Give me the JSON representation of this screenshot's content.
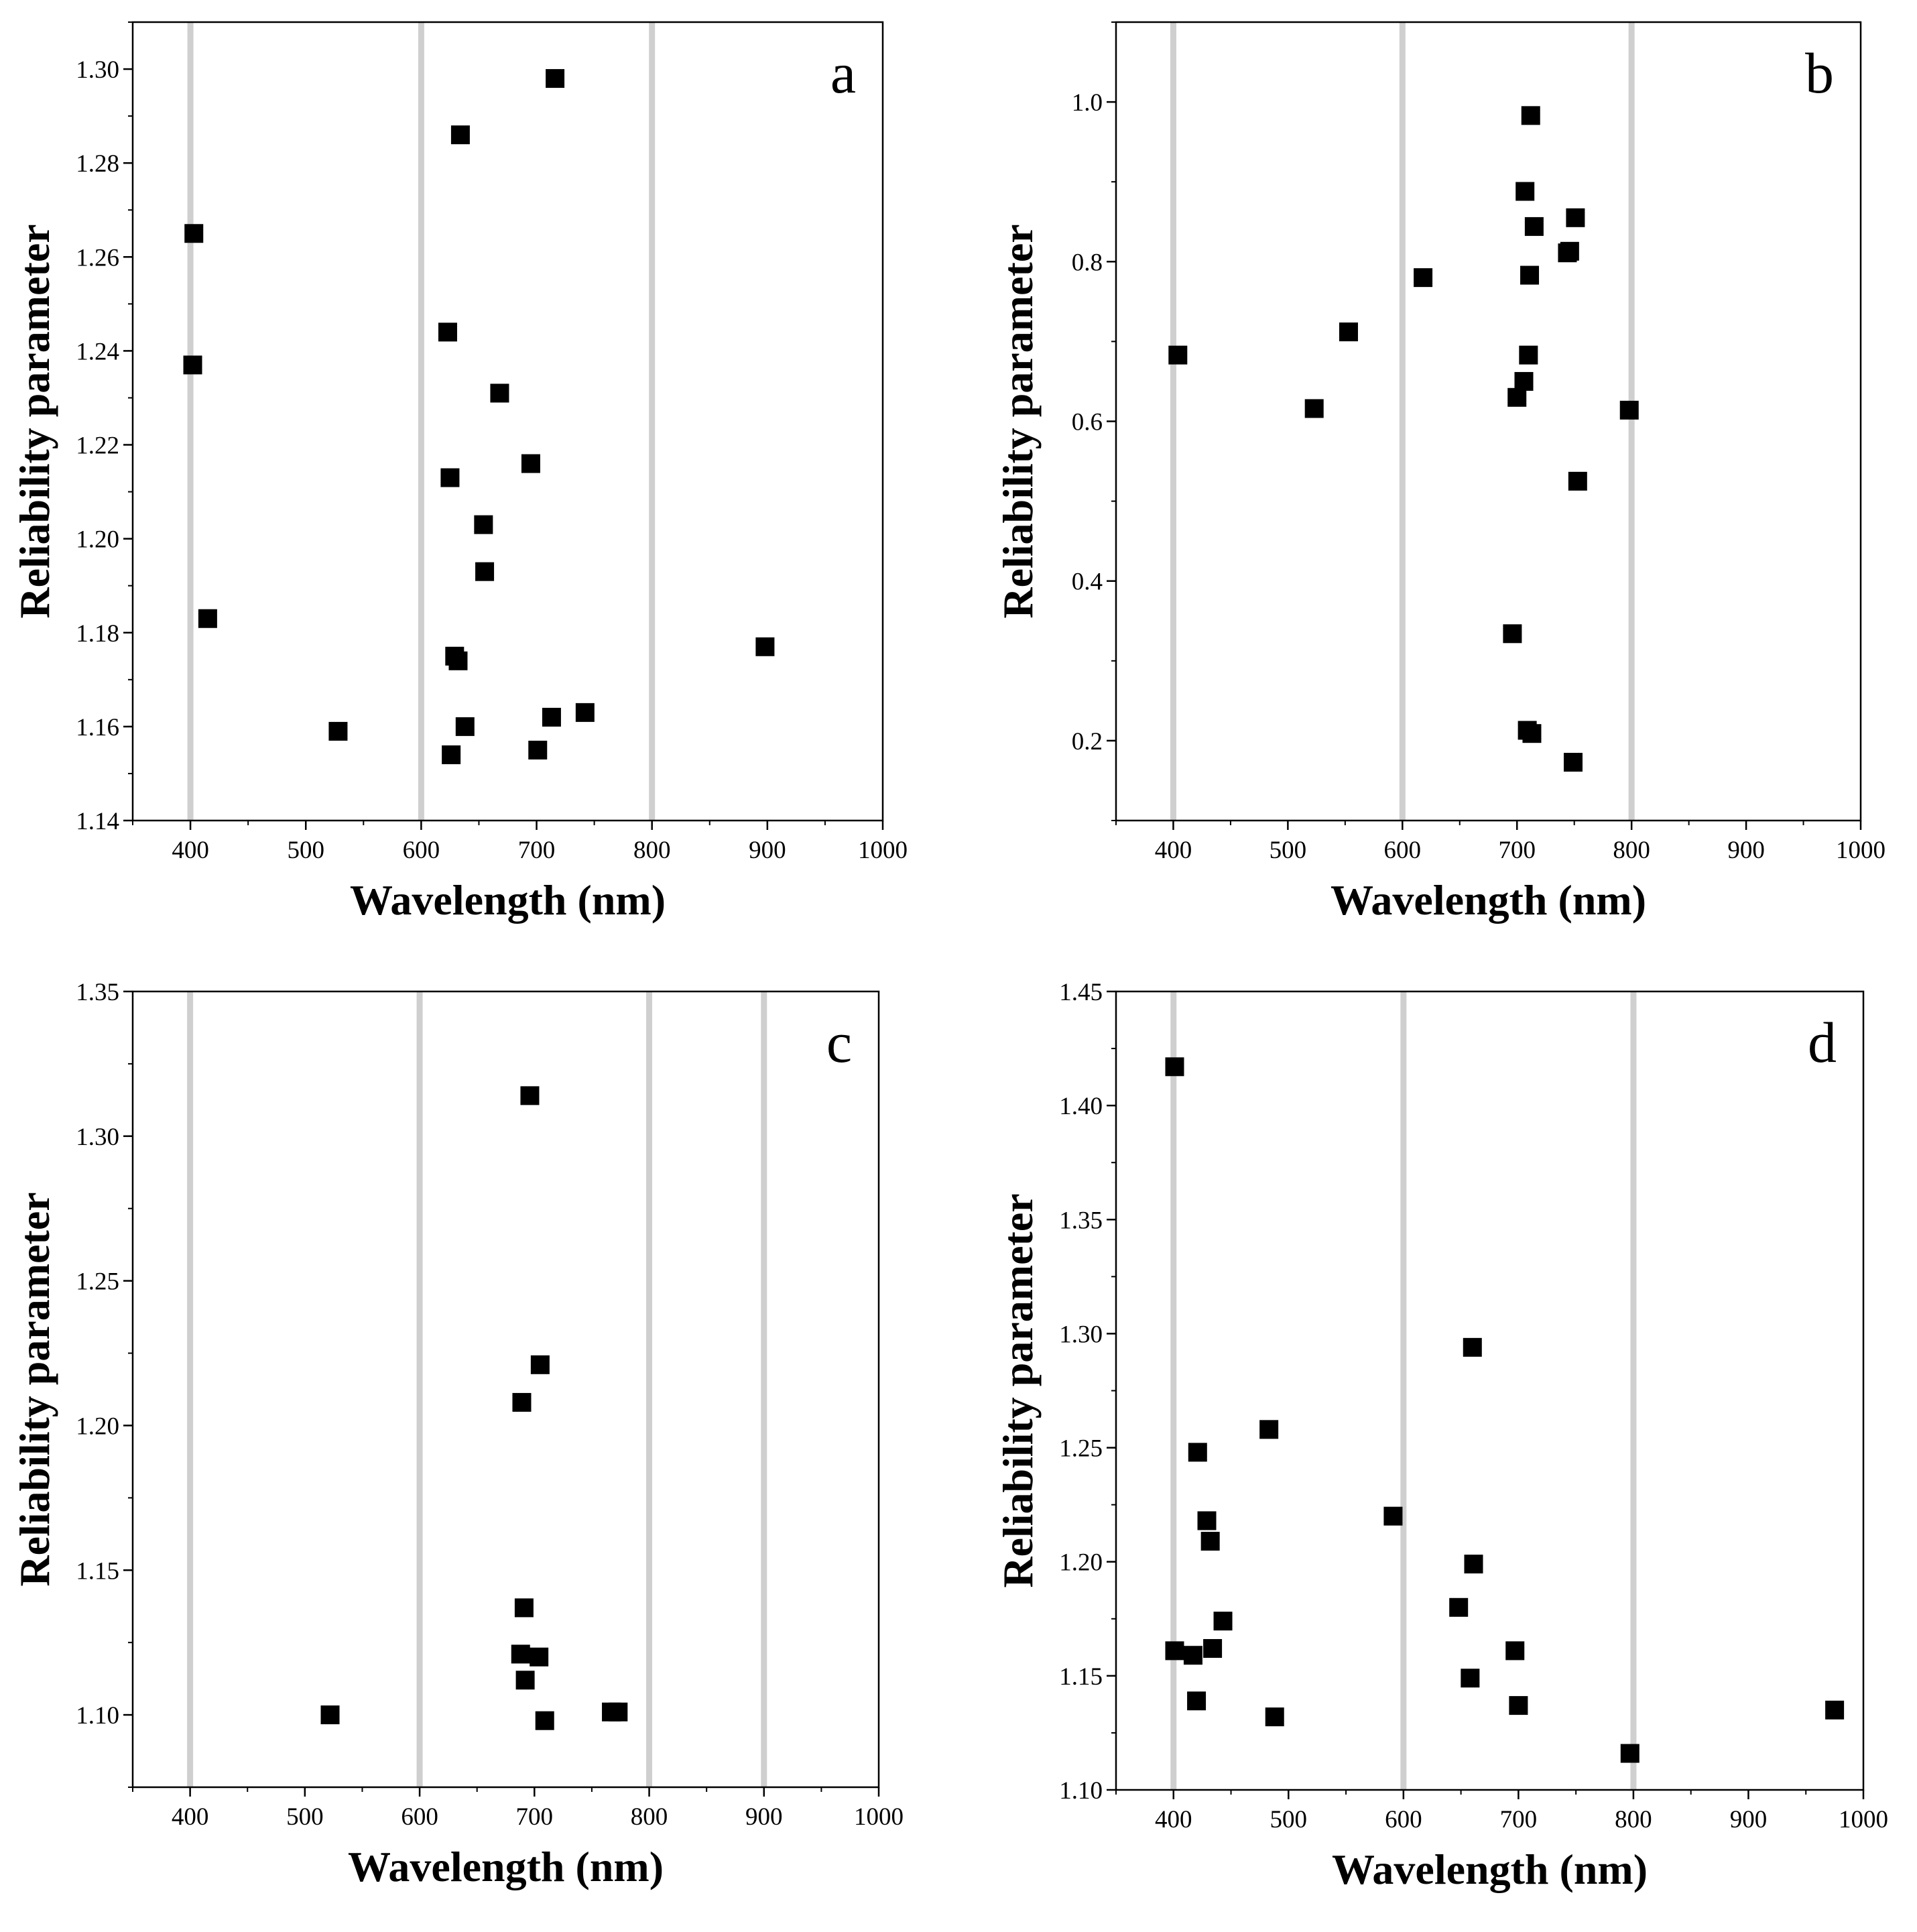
{
  "chart_data": [
    {
      "type": "scatter",
      "panel_label": "a",
      "xlabel": "Wavelength (nm)",
      "ylabel": "Reliability parameter",
      "xlim": [
        350,
        1000
      ],
      "ylim": [
        1.14,
        1.31
      ],
      "xticks": [
        400,
        500,
        600,
        700,
        800,
        900,
        1000
      ],
      "yticks": [
        1.14,
        1.16,
        1.18,
        1.2,
        1.22,
        1.24,
        1.26,
        1.28,
        1.3
      ],
      "ytick_labels": [
        "1.14",
        "1.16",
        "1.18",
        "1.20",
        "1.22",
        "1.24",
        "1.26",
        "1.28",
        "1.30"
      ],
      "xminor_step": 50,
      "yminor_step": 0.01,
      "vlines": [
        400,
        600,
        800
      ],
      "grid": false,
      "points": [
        {
          "x": 403,
          "y": 1.265
        },
        {
          "x": 402,
          "y": 1.237
        },
        {
          "x": 415,
          "y": 1.183
        },
        {
          "x": 528,
          "y": 1.159
        },
        {
          "x": 623,
          "y": 1.244
        },
        {
          "x": 625,
          "y": 1.213
        },
        {
          "x": 626,
          "y": 1.154
        },
        {
          "x": 629,
          "y": 1.175
        },
        {
          "x": 632,
          "y": 1.174
        },
        {
          "x": 634,
          "y": 1.286
        },
        {
          "x": 638,
          "y": 1.16
        },
        {
          "x": 654,
          "y": 1.203
        },
        {
          "x": 655,
          "y": 1.193
        },
        {
          "x": 668,
          "y": 1.231
        },
        {
          "x": 695,
          "y": 1.216
        },
        {
          "x": 701,
          "y": 1.155
        },
        {
          "x": 713,
          "y": 1.162
        },
        {
          "x": 716,
          "y": 1.298
        },
        {
          "x": 742,
          "y": 1.163
        },
        {
          "x": 898,
          "y": 1.177
        }
      ]
    },
    {
      "type": "scatter",
      "panel_label": "b",
      "xlabel": "Wavelength (nm)",
      "ylabel": "Reliability parameter",
      "xlim": [
        350,
        1000
      ],
      "ylim": [
        0.1,
        1.1
      ],
      "xticks": [
        400,
        500,
        600,
        700,
        800,
        900,
        1000
      ],
      "yticks": [
        0.2,
        0.4,
        0.6,
        0.8,
        1.0
      ],
      "ytick_labels": [
        "0.2",
        "0.4",
        "0.6",
        "0.8",
        "1.0"
      ],
      "xminor_step": 50,
      "yminor_step": 0.1,
      "vlines": [
        400,
        600,
        800
      ],
      "grid": false,
      "points": [
        {
          "x": 404,
          "y": 0.683
        },
        {
          "x": 523,
          "y": 0.616
        },
        {
          "x": 553,
          "y": 0.712
        },
        {
          "x": 618,
          "y": 0.78
        },
        {
          "x": 696,
          "y": 0.334
        },
        {
          "x": 700,
          "y": 0.63
        },
        {
          "x": 706,
          "y": 0.65
        },
        {
          "x": 707,
          "y": 0.888
        },
        {
          "x": 709,
          "y": 0.213
        },
        {
          "x": 710,
          "y": 0.683
        },
        {
          "x": 711,
          "y": 0.783
        },
        {
          "x": 712,
          "y": 0.983
        },
        {
          "x": 713,
          "y": 0.209
        },
        {
          "x": 715,
          "y": 0.844
        },
        {
          "x": 744,
          "y": 0.811
        },
        {
          "x": 746,
          "y": 0.813
        },
        {
          "x": 749,
          "y": 0.173
        },
        {
          "x": 751,
          "y": 0.855
        },
        {
          "x": 753,
          "y": 0.525
        },
        {
          "x": 798,
          "y": 0.614
        }
      ]
    },
    {
      "type": "scatter",
      "panel_label": "c",
      "xlabel": "Wavelength (nm)",
      "ylabel": "Reliability parameter",
      "xlim": [
        350,
        1000
      ],
      "ylim": [
        1.075,
        1.35
      ],
      "xticks": [
        400,
        500,
        600,
        700,
        800,
        900,
        1000
      ],
      "yticks": [
        1.1,
        1.15,
        1.2,
        1.25,
        1.3,
        1.35
      ],
      "ytick_labels": [
        "1.10",
        "1.15",
        "1.20",
        "1.25",
        "1.30",
        "1.35"
      ],
      "xminor_step": 50,
      "yminor_step": 0.025,
      "vlines": [
        400,
        600,
        800,
        900
      ],
      "grid": false,
      "points": [
        {
          "x": 522,
          "y": 1.1
        },
        {
          "x": 688,
          "y": 1.121
        },
        {
          "x": 689,
          "y": 1.208
        },
        {
          "x": 691,
          "y": 1.137
        },
        {
          "x": 692,
          "y": 1.112
        },
        {
          "x": 696,
          "y": 1.314
        },
        {
          "x": 704,
          "y": 1.12
        },
        {
          "x": 705,
          "y": 1.221
        },
        {
          "x": 709,
          "y": 1.098
        },
        {
          "x": 767,
          "y": 1.101
        },
        {
          "x": 773,
          "y": 1.101
        }
      ]
    },
    {
      "type": "scatter",
      "panel_label": "d",
      "xlabel": "Wavelength (nm)",
      "ylabel": "Reliability parameter",
      "xlim": [
        350,
        1000
      ],
      "ylim": [
        1.1,
        1.45
      ],
      "xticks": [
        400,
        500,
        600,
        700,
        800,
        900,
        1000
      ],
      "yticks": [
        1.1,
        1.15,
        1.2,
        1.25,
        1.3,
        1.35,
        1.4,
        1.45
      ],
      "ytick_labels": [
        "1.10",
        "1.15",
        "1.20",
        "1.25",
        "1.30",
        "1.35",
        "1.40",
        "1.45"
      ],
      "xminor_step": 50,
      "yminor_step": 0.025,
      "vlines": [
        400,
        600,
        800
      ],
      "grid": false,
      "points": [
        {
          "x": 401,
          "y": 1.417
        },
        {
          "x": 401,
          "y": 1.161
        },
        {
          "x": 417,
          "y": 1.159
        },
        {
          "x": 420,
          "y": 1.139
        },
        {
          "x": 421,
          "y": 1.248
        },
        {
          "x": 429,
          "y": 1.218
        },
        {
          "x": 432,
          "y": 1.209
        },
        {
          "x": 434,
          "y": 1.162
        },
        {
          "x": 443,
          "y": 1.174
        },
        {
          "x": 483,
          "y": 1.258
        },
        {
          "x": 488,
          "y": 1.132
        },
        {
          "x": 591,
          "y": 1.22
        },
        {
          "x": 648,
          "y": 1.18
        },
        {
          "x": 658,
          "y": 1.149
        },
        {
          "x": 660,
          "y": 1.294
        },
        {
          "x": 661,
          "y": 1.199
        },
        {
          "x": 697,
          "y": 1.161
        },
        {
          "x": 700,
          "y": 1.137
        },
        {
          "x": 797,
          "y": 1.116
        },
        {
          "x": 975,
          "y": 1.135
        }
      ]
    }
  ]
}
